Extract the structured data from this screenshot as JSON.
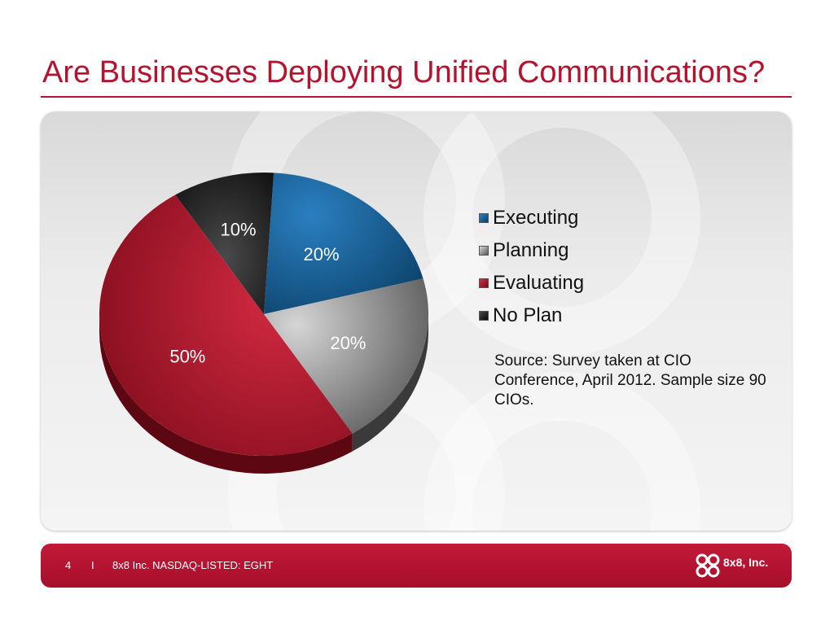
{
  "slide": {
    "title": "Are Businesses Deploying Unified Communications?",
    "source_note": "Source: Survey taken at CIO Conference, April 2012. Sample size 90 CIOs."
  },
  "colors": {
    "accent": "#b5122e",
    "executing": "#0f5b8e",
    "planning": "#8f8f8f",
    "evaluating": "#b8182f",
    "no_plan": "#1c1c1c"
  },
  "chart_data": {
    "type": "pie",
    "title": "",
    "legend_position": "right",
    "slices": [
      {
        "label": "Executing",
        "value": 20,
        "display": "20%"
      },
      {
        "label": "Planning",
        "value": 20,
        "display": "20%"
      },
      {
        "label": "Evaluating",
        "value": 50,
        "display": "50%"
      },
      {
        "label": "No Plan",
        "value": 10,
        "display": "10%"
      }
    ]
  },
  "legend": [
    {
      "label": "Executing"
    },
    {
      "label": "Planning"
    },
    {
      "label": "Evaluating"
    },
    {
      "label": "No Plan"
    }
  ],
  "footer": {
    "page_number": "4",
    "separator": "I",
    "company_text": "8x8 Inc. NASDAQ-LISTED: EGHT",
    "logo_text": "8x8, Inc."
  }
}
